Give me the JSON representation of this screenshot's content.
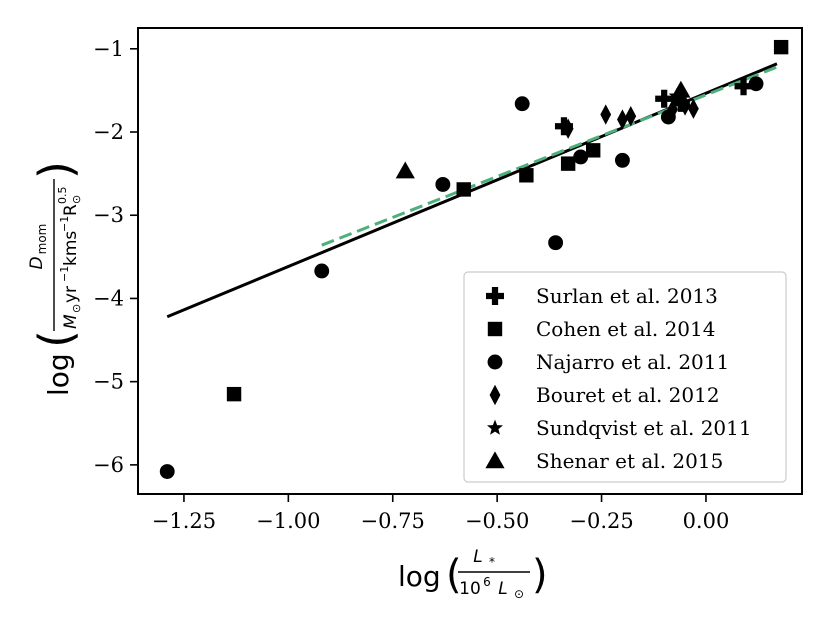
{
  "chart_data": {
    "type": "scatter",
    "xlabel": {
      "prefix": "log",
      "numerator": "L",
      "numerator_sub": "*",
      "denominator": "10",
      "denominator_sup": "6",
      "denominator_tail": "L",
      "denominator_tail_sub": "⊙"
    },
    "ylabel": {
      "prefix": "log",
      "numerator": "D",
      "numerator_sub": "mom",
      "denominator_parts": [
        "M",
        "⊙",
        "yr",
        "−1",
        "kms",
        "−1",
        "R",
        "⊙",
        "0.5"
      ]
    },
    "xlim": [
      -1.36,
      0.23
    ],
    "ylim": [
      -6.35,
      -0.75
    ],
    "x_ticks": [
      {
        "value": -1.25,
        "label": "−1.25"
      },
      {
        "value": -1.0,
        "label": "−1.00"
      },
      {
        "value": -0.75,
        "label": "−0.75"
      },
      {
        "value": -0.5,
        "label": "−0.50"
      },
      {
        "value": -0.25,
        "label": "−0.25"
      },
      {
        "value": 0.0,
        "label": "0.00"
      }
    ],
    "y_ticks": [
      {
        "value": -1,
        "label": "−1"
      },
      {
        "value": -2,
        "label": "−2"
      },
      {
        "value": -3,
        "label": "−3"
      },
      {
        "value": -4,
        "label": "−4"
      },
      {
        "value": -5,
        "label": "−5"
      },
      {
        "value": -6,
        "label": "−6"
      }
    ],
    "grid": false,
    "legend_position": "bottom-right",
    "series": [
      {
        "name": "Surlan et al. 2013",
        "marker": "plus",
        "points": [
          [
            -0.34,
            -1.93
          ],
          [
            -0.1,
            -1.6
          ],
          [
            0.09,
            -1.45
          ],
          [
            -0.06,
            -1.65
          ]
        ]
      },
      {
        "name": "Cohen et al. 2014",
        "marker": "square",
        "points": [
          [
            0.18,
            -0.98
          ],
          [
            -0.27,
            -2.22
          ],
          [
            -0.33,
            -2.38
          ],
          [
            -0.43,
            -2.52
          ],
          [
            -0.58,
            -2.69
          ],
          [
            -1.13,
            -5.15
          ]
        ]
      },
      {
        "name": "Najarro et al. 2011",
        "marker": "circle",
        "points": [
          [
            -1.29,
            -6.08
          ],
          [
            -0.92,
            -3.67
          ],
          [
            -0.63,
            -2.63
          ],
          [
            -0.44,
            -1.66
          ],
          [
            -0.3,
            -2.3
          ],
          [
            -0.36,
            -3.33
          ],
          [
            -0.2,
            -2.34
          ],
          [
            -0.09,
            -1.82
          ],
          [
            0.12,
            -1.42
          ]
        ]
      },
      {
        "name": "Bouret et al. 2012",
        "marker": "diamond",
        "points": [
          [
            -0.33,
            -1.96
          ],
          [
            -0.24,
            -1.79
          ],
          [
            -0.18,
            -1.81
          ],
          [
            -0.2,
            -1.85
          ],
          [
            -0.08,
            -1.73
          ],
          [
            -0.05,
            -1.68
          ],
          [
            -0.03,
            -1.72
          ]
        ]
      },
      {
        "name": "Sundqvist et al. 2011",
        "marker": "star",
        "points": [
          [
            -0.07,
            -1.57
          ]
        ]
      },
      {
        "name": "Shenar et al. 2015",
        "marker": "triangle",
        "points": [
          [
            -0.72,
            -2.47
          ],
          [
            -0.06,
            -1.5
          ]
        ]
      }
    ],
    "fit_lines": [
      {
        "style": "solid",
        "color": "#000000",
        "x": [
          -1.29,
          0.17
        ],
        "y": [
          -4.22,
          -1.18
        ]
      },
      {
        "style": "dashed",
        "color": "#4daf7c",
        "x": [
          -0.92,
          0.18
        ],
        "y": [
          -3.36,
          -1.2
        ]
      }
    ]
  }
}
